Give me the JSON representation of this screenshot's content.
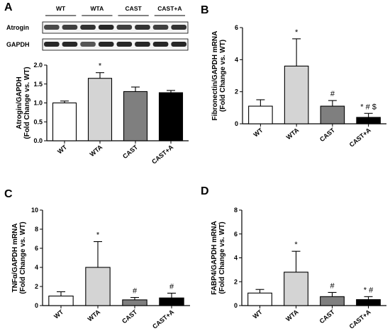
{
  "panel_letters": [
    "A",
    "B",
    "C",
    "D"
  ],
  "blot": {
    "groups": [
      "WT",
      "WTA",
      "CAST",
      "CAST+A"
    ],
    "rows": [
      "Atrogin",
      "GAPDH"
    ]
  },
  "chart_data": [
    {
      "type": "bar",
      "panel": "A",
      "ylabel": [
        "Atrogin/GAPDH",
        "(Fold Change vs. WT)"
      ],
      "categories": [
        "WT",
        "WTA",
        "CAST",
        "CAST+A"
      ],
      "values": [
        1.0,
        1.65,
        1.3,
        1.27
      ],
      "errors": [
        0.05,
        0.15,
        0.12,
        0.06
      ],
      "significance": [
        "",
        "*",
        "",
        ""
      ],
      "ylim": [
        0,
        2.0
      ],
      "yticks": [
        "0.0",
        "0.5",
        "1.0",
        "1.5",
        "2.0"
      ],
      "ytick_values": [
        0,
        0.5,
        1.0,
        1.5,
        2.0
      ],
      "bar_colors": [
        "#ffffff",
        "#d4d4d4",
        "#7f7f7f",
        "#000000"
      ]
    },
    {
      "type": "bar",
      "panel": "B",
      "ylabel": [
        "Fibronectin/GAPDH mRNA",
        "(Fold Change vs. WT)"
      ],
      "categories": [
        "WT",
        "WTA",
        "CAST",
        "CAST+A"
      ],
      "values": [
        1.1,
        3.6,
        1.1,
        0.4
      ],
      "errors": [
        0.4,
        1.7,
        0.35,
        0.25
      ],
      "significance": [
        "",
        "*",
        "#",
        "* # $"
      ],
      "ylim": [
        0,
        6
      ],
      "yticks": [
        "0",
        "2",
        "4",
        "6"
      ],
      "ytick_values": [
        0,
        2,
        4,
        6
      ],
      "bar_colors": [
        "#ffffff",
        "#d4d4d4",
        "#7f7f7f",
        "#000000"
      ]
    },
    {
      "type": "bar",
      "panel": "C",
      "ylabel": [
        "TNFα/GAPDH mRNA",
        "(Fold Change vs. WT)"
      ],
      "categories": [
        "WT",
        "WTA",
        "CAST",
        "CAST+A"
      ],
      "values": [
        1.0,
        4.0,
        0.6,
        0.8
      ],
      "errors": [
        0.45,
        2.7,
        0.25,
        0.5
      ],
      "significance": [
        "",
        "*",
        "#",
        "#"
      ],
      "ylim": [
        0,
        10
      ],
      "yticks": [
        "0",
        "2",
        "4",
        "6",
        "8",
        "10"
      ],
      "ytick_values": [
        0,
        2,
        4,
        6,
        8,
        10
      ],
      "bar_colors": [
        "#ffffff",
        "#d4d4d4",
        "#7f7f7f",
        "#000000"
      ]
    },
    {
      "type": "bar",
      "panel": "D",
      "ylabel": [
        "FABP4/GAPDH mRNA",
        "(Fold Change vs. WT)"
      ],
      "categories": [
        "WT",
        "WTA",
        "CAST",
        "CAST+A"
      ],
      "values": [
        1.05,
        2.8,
        0.75,
        0.5
      ],
      "errors": [
        0.3,
        1.75,
        0.35,
        0.25
      ],
      "significance": [
        "",
        "*",
        "#",
        "* #"
      ],
      "ylim": [
        0,
        8
      ],
      "yticks": [
        "0",
        "2",
        "4",
        "6",
        "8"
      ],
      "ytick_values": [
        0,
        2,
        4,
        6,
        8
      ],
      "bar_colors": [
        "#ffffff",
        "#d4d4d4",
        "#7f7f7f",
        "#000000"
      ]
    }
  ]
}
